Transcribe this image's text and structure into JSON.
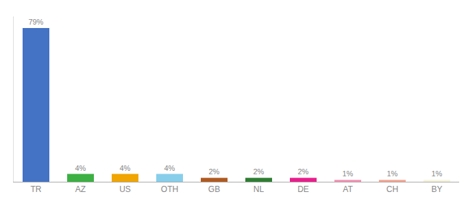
{
  "chart_data": {
    "type": "bar",
    "categories": [
      "TR",
      "AZ",
      "US",
      "OTH",
      "GB",
      "NL",
      "DE",
      "AT",
      "CH",
      "BY"
    ],
    "values": [
      79,
      4,
      4,
      4,
      2,
      2,
      2,
      1,
      1,
      1
    ],
    "value_labels": [
      "79%",
      "4%",
      "4%",
      "4%",
      "2%",
      "2%",
      "2%",
      "1%",
      "1%",
      "1%"
    ],
    "colors": [
      "#4472c4",
      "#3cb043",
      "#f0a500",
      "#87ceeb",
      "#b05a20",
      "#2e7d32",
      "#e91e8c",
      "#f48fb1",
      "#f4a490",
      "#f5f5dc"
    ],
    "ylim": [
      0,
      85
    ],
    "data_labels": true,
    "tick_labels": "x",
    "grid": false
  }
}
